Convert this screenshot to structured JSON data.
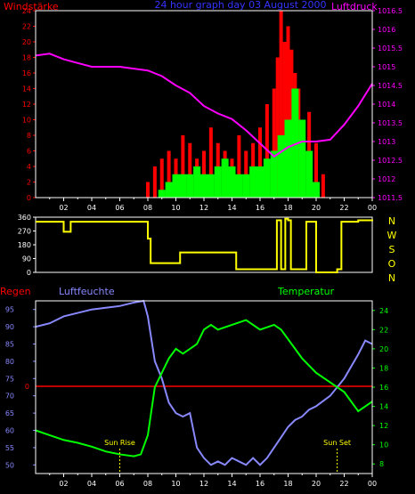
{
  "header": {
    "title": "24 hour graph day 03 August 2000"
  },
  "colors": {
    "red": "#ff0000",
    "magenta": "#ff00ff",
    "yellow": "#ffff00",
    "green": "#00ff00",
    "blue": "#8888ff",
    "frame": "#ffffff",
    "bg": "#000000"
  },
  "x_ticks": [
    "02",
    "04",
    "06",
    "08",
    "10",
    "12",
    "14",
    "16",
    "18",
    "20",
    "22",
    "00"
  ],
  "chart_data": [
    {
      "id": "wind_pressure",
      "type": "bar",
      "left_label": "Windstärke",
      "right_label": "Luftdruck",
      "y_left_ticks": [
        "0",
        "2",
        "4",
        "6",
        "8",
        "10",
        "12",
        "14",
        "16",
        "18",
        "20",
        "22",
        "24"
      ],
      "y_left_range": [
        0,
        24
      ],
      "y_right_ticks": [
        "1011.5",
        "1012",
        "1012.5",
        "1013",
        "1013.5",
        "1014",
        "1014.5",
        "1015",
        "1015.5",
        "1016",
        "1016.5"
      ],
      "y_right_range": [
        1011.5,
        1016.5
      ],
      "gust_hours": [
        8,
        8.5,
        9,
        9.5,
        10,
        10.5,
        11,
        11.5,
        12,
        12.5,
        13,
        13.5,
        14,
        14.5,
        15,
        15.5,
        16,
        16.5,
        17,
        17.25,
        17.5,
        17.75,
        18,
        18.25,
        18.5,
        18.75,
        19,
        19.5,
        20,
        20.5
      ],
      "gust_values": [
        2,
        4,
        5,
        6,
        5,
        8,
        7,
        5,
        6,
        9,
        7,
        6,
        5,
        8,
        6,
        7,
        9,
        12,
        14,
        18,
        24,
        20,
        22,
        19,
        16,
        14,
        10,
        11,
        7,
        3
      ],
      "wind_hours": [
        9,
        9.5,
        10,
        10.5,
        11,
        11.5,
        12,
        12.5,
        13,
        13.5,
        14,
        14.5,
        15,
        15.5,
        16,
        16.5,
        17,
        17.5,
        18,
        18.5,
        19,
        19.5,
        20
      ],
      "wind_values": [
        1,
        2,
        3,
        3,
        3,
        4,
        3,
        3,
        4,
        5,
        4,
        3,
        3,
        4,
        4,
        5,
        6,
        8,
        10,
        14,
        10,
        6,
        2
      ],
      "pressure_hours": [
        0,
        1,
        2,
        3,
        4,
        5,
        6,
        7,
        8,
        9,
        10,
        11,
        12,
        13,
        14,
        15,
        16,
        17,
        18,
        19,
        20,
        21,
        22,
        23,
        24
      ],
      "pressure_values": [
        1015.3,
        1015.35,
        1015.2,
        1015.1,
        1015.0,
        1015.0,
        1015.0,
        1014.95,
        1014.9,
        1014.75,
        1014.5,
        1014.3,
        1013.95,
        1013.75,
        1013.6,
        1013.3,
        1012.95,
        1012.6,
        1012.85,
        1013.0,
        1013.0,
        1013.05,
        1013.45,
        1013.95,
        1014.55
      ]
    },
    {
      "id": "wind_direction",
      "type": "line",
      "right_labels": [
        "N",
        "W",
        "S",
        "O",
        "N"
      ],
      "y_ticks": [
        "0",
        "90",
        "180",
        "270",
        "360"
      ],
      "y_range": [
        0,
        360
      ],
      "hours": [
        0,
        0.5,
        1.5,
        2,
        2.5,
        7.5,
        8,
        8.2,
        10,
        10.3,
        14,
        14.3,
        15.5,
        17,
        17.2,
        17.5,
        17.8,
        18,
        18.2,
        19,
        19.3,
        20,
        21.5,
        21.8,
        23,
        24
      ],
      "values": [
        330,
        330,
        330,
        265,
        330,
        330,
        220,
        60,
        60,
        130,
        130,
        20,
        20,
        20,
        340,
        20,
        350,
        340,
        20,
        20,
        330,
        0,
        20,
        330,
        340,
        345
      ]
    },
    {
      "id": "rain_humidity_temp",
      "type": "line",
      "left_labels": {
        "rain": "Regen",
        "humidity": "Luftfeuchte",
        "temperature": "Temperatur"
      },
      "humidity_ticks": [
        "50",
        "55",
        "60",
        "65",
        "70",
        "75",
        "80",
        "85",
        "90",
        "95"
      ],
      "humidity_range": [
        47.5,
        97.5
      ],
      "temperature_ticks": [
        "8",
        "10",
        "12",
        "14",
        "16",
        "18",
        "20",
        "22",
        "24"
      ],
      "temperature_range": [
        7,
        25
      ],
      "rain_label": "0",
      "rain_value": 0,
      "annotations": [
        {
          "text": "Sun Rise",
          "hour": 6
        },
        {
          "text": "Sun Set",
          "hour": 21.5
        }
      ],
      "humidity_hours": [
        0,
        1,
        2,
        3,
        4,
        5,
        6,
        7,
        7.7,
        8,
        8.5,
        9,
        9.5,
        10,
        10.5,
        11,
        11.5,
        12,
        12.5,
        13,
        13.5,
        14,
        14.5,
        15,
        15.5,
        16,
        16.5,
        17,
        17.5,
        18,
        18.5,
        19,
        19.5,
        20,
        21,
        22,
        23,
        23.5,
        24
      ],
      "humidity_values": [
        90,
        91,
        93,
        94,
        95,
        95.5,
        96,
        97,
        97.5,
        93,
        80,
        75,
        68,
        65,
        64,
        65,
        55,
        52,
        50,
        51,
        50,
        52,
        51,
        50,
        52,
        50,
        52,
        55,
        58,
        61,
        63,
        64,
        66,
        67,
        70,
        75,
        82,
        86,
        85
      ],
      "temperature_hours": [
        0,
        1,
        2,
        3,
        4,
        5,
        6,
        7,
        7.5,
        8,
        8.5,
        9,
        9.5,
        10,
        10.5,
        11,
        11.5,
        12,
        12.5,
        13,
        14,
        15,
        16,
        17,
        17.5,
        18,
        18.5,
        19,
        20,
        21,
        22,
        22.5,
        23,
        24
      ],
      "temperature_values": [
        11.5,
        11,
        10.5,
        10.2,
        9.8,
        9.3,
        9,
        8.8,
        9,
        11,
        16,
        17.5,
        19,
        20,
        19.5,
        20,
        20.5,
        22,
        22.5,
        22,
        22.5,
        23,
        22,
        22.5,
        22,
        21,
        20,
        19,
        17.5,
        16.5,
        15.5,
        14.5,
        13.5,
        14.5
      ]
    }
  ]
}
